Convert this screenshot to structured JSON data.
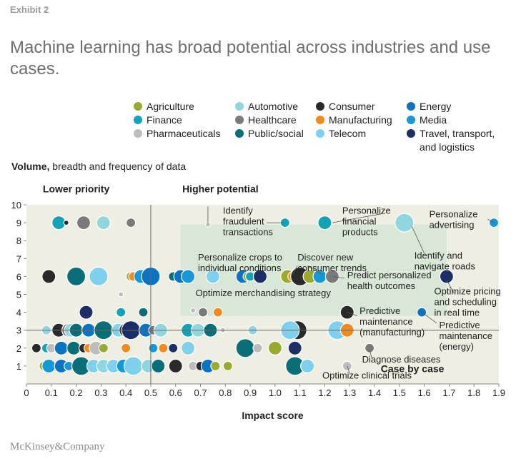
{
  "exhibit": "Exhibit 2",
  "title": "Machine learning has broad potential across industries and use cases.",
  "brand": "McKinsey&Company",
  "colors": {
    "Agriculture": "#9aaa2e",
    "Automotive": "#8fd6de",
    "Consumer": "#2a2a2a",
    "Energy": "#0a73c4",
    "Finance": "#12a3b6",
    "Healthcare": "#7a7a7a",
    "Manufacturing": "#f28a1e",
    "Media": "#1498d8",
    "Pharmaceuticals": "#bdbdbd",
    "Public/social": "#0a6e78",
    "Telecom": "#7fd0ec",
    "Travel": "#1c2e66",
    "plot_bg": "#efeee2",
    "highlight": "#d9e8d6"
  },
  "legend": [
    {
      "key": "Agriculture",
      "label": "Agriculture"
    },
    {
      "key": "Automotive",
      "label": "Automotive"
    },
    {
      "key": "Consumer",
      "label": "Consumer"
    },
    {
      "key": "Energy",
      "label": "Energy"
    },
    {
      "key": "Finance",
      "label": "Finance"
    },
    {
      "key": "Healthcare",
      "label": "Healthcare"
    },
    {
      "key": "Manufacturing",
      "label": "Manufacturing"
    },
    {
      "key": "Media",
      "label": "Media"
    },
    {
      "key": "Pharmaceuticals",
      "label": "Pharmaceuticals"
    },
    {
      "key": "Public/social",
      "label": "Public/social"
    },
    {
      "key": "Telecom",
      "label": "Telecom"
    },
    {
      "key": "Travel",
      "label": "Travel, transport,",
      "label2": "and logistics"
    }
  ],
  "y_title_bold": "Volume,",
  "y_title_rest": " breadth and frequency of data",
  "chart_data": {
    "type": "scatter",
    "title": "Machine learning has broad potential across industries and use cases.",
    "xlabel": "Impact score",
    "ylabel": "Volume, breadth and frequency of data",
    "xlim": [
      0,
      1.9
    ],
    "ylim": [
      0,
      10
    ],
    "xticks": [
      "0",
      "0.1",
      "0.2",
      "0.3",
      "0.4",
      "0.5",
      "0.6",
      "0.7",
      "0.8",
      "0.9",
      "1.0",
      "1.1",
      "1.2",
      "1.3",
      "1.4",
      "1.5",
      "1.6",
      "1.7",
      "1.8",
      "1.9"
    ],
    "yticks": [
      "1",
      "2",
      "3",
      "4",
      "5",
      "6",
      "7",
      "8",
      "9",
      "10"
    ],
    "divider_x": 0.5,
    "divider_y": 3,
    "highlight_region": {
      "x": [
        0.62,
        1.69
      ],
      "y": [
        3.8,
        8.9
      ]
    },
    "quadrant_labels": [
      {
        "text": "Lower priority",
        "x": 0.2,
        "y": 10.7
      },
      {
        "text": "Higher potential",
        "x": 0.78,
        "y": 10.7
      },
      {
        "text": "Case by case",
        "x": 1.68,
        "y": 0.65
      }
    ],
    "points": [
      {
        "x": 0.13,
        "y": 9,
        "s": 3,
        "c": "Finance"
      },
      {
        "x": 0.16,
        "y": 9,
        "s": 1,
        "c": "Consumer"
      },
      {
        "x": 0.23,
        "y": 9,
        "s": 3,
        "c": "Healthcare"
      },
      {
        "x": 0.31,
        "y": 9,
        "s": 3,
        "c": "Automotive"
      },
      {
        "x": 0.42,
        "y": 9,
        "s": 2,
        "c": "Healthcare"
      },
      {
        "x": 0.73,
        "y": 8.9,
        "s": 1,
        "c": "Pharmaceuticals"
      },
      {
        "x": 1.04,
        "y": 9,
        "s": 2,
        "c": "Finance"
      },
      {
        "x": 1.2,
        "y": 9,
        "s": 3,
        "c": "Finance"
      },
      {
        "x": 1.52,
        "y": 9,
        "s": 4,
        "c": "Automotive"
      },
      {
        "x": 1.88,
        "y": 9,
        "s": 2,
        "c": "Media"
      },
      {
        "x": 0.09,
        "y": 6,
        "s": 3,
        "c": "Consumer"
      },
      {
        "x": 0.2,
        "y": 6,
        "s": 4,
        "c": "Public/social"
      },
      {
        "x": 0.29,
        "y": 6,
        "s": 4,
        "c": "Telecom"
      },
      {
        "x": 0.42,
        "y": 6,
        "s": 2,
        "c": "Agriculture"
      },
      {
        "x": 0.43,
        "y": 6,
        "s": 2,
        "c": "Manufacturing"
      },
      {
        "x": 0.46,
        "y": 6,
        "s": 3,
        "c": "Media"
      },
      {
        "x": 0.5,
        "y": 6,
        "s": 4,
        "c": "Energy"
      },
      {
        "x": 0.59,
        "y": 6,
        "s": 2,
        "c": "Public/social"
      },
      {
        "x": 0.62,
        "y": 6,
        "s": 3,
        "c": "Energy"
      },
      {
        "x": 0.65,
        "y": 6,
        "s": 3,
        "c": "Media"
      },
      {
        "x": 0.75,
        "y": 6,
        "s": 3,
        "c": "Telecom"
      },
      {
        "x": 0.87,
        "y": 6,
        "s": 3,
        "c": "Energy"
      },
      {
        "x": 0.89,
        "y": 6,
        "s": 2,
        "c": "Agriculture"
      },
      {
        "x": 0.9,
        "y": 6,
        "s": 2,
        "c": "Finance"
      },
      {
        "x": 0.94,
        "y": 6,
        "s": 3,
        "c": "Travel"
      },
      {
        "x": 1.05,
        "y": 6,
        "s": 3,
        "c": "Agriculture"
      },
      {
        "x": 1.07,
        "y": 6,
        "s": 2,
        "c": "Manufacturing"
      },
      {
        "x": 1.1,
        "y": 6,
        "s": 4,
        "c": "Consumer"
      },
      {
        "x": 1.14,
        "y": 6,
        "s": 3,
        "c": "Agriculture"
      },
      {
        "x": 1.18,
        "y": 6,
        "s": 3,
        "c": "Media"
      },
      {
        "x": 1.23,
        "y": 6,
        "s": 3,
        "c": "Healthcare"
      },
      {
        "x": 1.36,
        "y": 6,
        "s": 1,
        "c": "Pharmaceuticals"
      },
      {
        "x": 1.69,
        "y": 6,
        "s": 3,
        "c": "Travel"
      },
      {
        "x": 0.38,
        "y": 5,
        "s": 1,
        "c": "Pharmaceuticals"
      },
      {
        "x": 0.67,
        "y": 4.1,
        "s": 1,
        "c": "Pharmaceuticals"
      },
      {
        "x": 0.71,
        "y": 4,
        "s": 2,
        "c": "Healthcare"
      },
      {
        "x": 0.77,
        "y": 4,
        "s": 2,
        "c": "Manufacturing"
      },
      {
        "x": 0.24,
        "y": 4,
        "s": 3,
        "c": "Travel"
      },
      {
        "x": 0.38,
        "y": 4,
        "s": 2,
        "c": "Finance"
      },
      {
        "x": 0.47,
        "y": 4,
        "s": 2,
        "c": "Public/social"
      },
      {
        "x": 1.29,
        "y": 4,
        "s": 3,
        "c": "Consumer"
      },
      {
        "x": 1.59,
        "y": 4,
        "s": 2,
        "c": "Energy"
      },
      {
        "x": 0.08,
        "y": 3,
        "s": 2,
        "c": "Automotive"
      },
      {
        "x": 0.13,
        "y": 3,
        "s": 3,
        "c": "Consumer"
      },
      {
        "x": 0.17,
        "y": 3,
        "s": 3,
        "c": "Healthcare"
      },
      {
        "x": 0.18,
        "y": 3,
        "s": 3,
        "c": "Automotive"
      },
      {
        "x": 0.2,
        "y": 3,
        "s": 3,
        "c": "Public/social"
      },
      {
        "x": 0.25,
        "y": 3,
        "s": 3,
        "c": "Energy"
      },
      {
        "x": 0.31,
        "y": 3,
        "s": 4,
        "c": "Public/social"
      },
      {
        "x": 0.37,
        "y": 3,
        "s": 3,
        "c": "Telecom"
      },
      {
        "x": 0.4,
        "y": 3,
        "s": 3,
        "c": "Consumer"
      },
      {
        "x": 0.42,
        "y": 3,
        "s": 4,
        "c": "Travel"
      },
      {
        "x": 0.48,
        "y": 3,
        "s": 3,
        "c": "Energy"
      },
      {
        "x": 0.51,
        "y": 3,
        "s": 2,
        "c": "Healthcare"
      },
      {
        "x": 0.54,
        "y": 3,
        "s": 3,
        "c": "Automotive"
      },
      {
        "x": 0.65,
        "y": 3,
        "s": 3,
        "c": "Finance"
      },
      {
        "x": 0.69,
        "y": 3,
        "s": 3,
        "c": "Automotive"
      },
      {
        "x": 0.74,
        "y": 3,
        "s": 3,
        "c": "Public/social"
      },
      {
        "x": 0.79,
        "y": 3,
        "s": 1,
        "c": "Pharmaceuticals"
      },
      {
        "x": 0.91,
        "y": 3,
        "s": 2,
        "c": "Automotive"
      },
      {
        "x": 1.09,
        "y": 3,
        "s": 4,
        "c": "Consumer"
      },
      {
        "x": 1.06,
        "y": 3,
        "s": 4,
        "c": "Telecom"
      },
      {
        "x": 1.25,
        "y": 3,
        "s": 4,
        "c": "Telecom"
      },
      {
        "x": 1.29,
        "y": 3,
        "s": 3,
        "c": "Manufacturing"
      },
      {
        "x": 0.04,
        "y": 2,
        "s": 2,
        "c": "Consumer"
      },
      {
        "x": 0.08,
        "y": 2,
        "s": 2,
        "c": "Finance"
      },
      {
        "x": 0.1,
        "y": 2,
        "s": 2,
        "c": "Pharmaceuticals"
      },
      {
        "x": 0.14,
        "y": 2,
        "s": 3,
        "c": "Energy"
      },
      {
        "x": 0.19,
        "y": 2,
        "s": 3,
        "c": "Public/social"
      },
      {
        "x": 0.23,
        "y": 2,
        "s": 2,
        "c": "Consumer"
      },
      {
        "x": 0.25,
        "y": 2,
        "s": 2,
        "c": "Manufacturing"
      },
      {
        "x": 0.28,
        "y": 2,
        "s": 3,
        "c": "Pharmaceuticals"
      },
      {
        "x": 0.31,
        "y": 2,
        "s": 2,
        "c": "Agriculture"
      },
      {
        "x": 0.4,
        "y": 2,
        "s": 2,
        "c": "Manufacturing"
      },
      {
        "x": 0.51,
        "y": 2,
        "s": 2,
        "c": "Media"
      },
      {
        "x": 0.55,
        "y": 2,
        "s": 2,
        "c": "Manufacturing"
      },
      {
        "x": 0.59,
        "y": 2,
        "s": 2,
        "c": "Travel"
      },
      {
        "x": 0.65,
        "y": 2,
        "s": 3,
        "c": "Telecom"
      },
      {
        "x": 0.88,
        "y": 2,
        "s": 4,
        "c": "Public/social"
      },
      {
        "x": 0.93,
        "y": 2,
        "s": 2,
        "c": "Pharmaceuticals"
      },
      {
        "x": 1.0,
        "y": 2,
        "s": 3,
        "c": "Agriculture"
      },
      {
        "x": 1.08,
        "y": 2,
        "s": 3,
        "c": "Travel"
      },
      {
        "x": 1.38,
        "y": 2,
        "s": 2,
        "c": "Healthcare"
      },
      {
        "x": 0.07,
        "y": 1,
        "s": 2,
        "c": "Agriculture"
      },
      {
        "x": 0.09,
        "y": 1,
        "s": 3,
        "c": "Media"
      },
      {
        "x": 0.14,
        "y": 1,
        "s": 3,
        "c": "Energy"
      },
      {
        "x": 0.17,
        "y": 1,
        "s": 2,
        "c": "Media"
      },
      {
        "x": 0.22,
        "y": 1,
        "s": 4,
        "c": "Public/social"
      },
      {
        "x": 0.27,
        "y": 1,
        "s": 3,
        "c": "Telecom"
      },
      {
        "x": 0.31,
        "y": 1,
        "s": 3,
        "c": "Automotive"
      },
      {
        "x": 0.35,
        "y": 1,
        "s": 3,
        "c": "Telecom"
      },
      {
        "x": 0.39,
        "y": 1,
        "s": 3,
        "c": "Media"
      },
      {
        "x": 0.43,
        "y": 1,
        "s": 4,
        "c": "Telecom"
      },
      {
        "x": 0.49,
        "y": 1,
        "s": 3,
        "c": "Automotive"
      },
      {
        "x": 0.53,
        "y": 1,
        "s": 3,
        "c": "Public/social"
      },
      {
        "x": 0.6,
        "y": 1,
        "s": 3,
        "c": "Consumer"
      },
      {
        "x": 0.67,
        "y": 1,
        "s": 2,
        "c": "Pharmaceuticals"
      },
      {
        "x": 0.7,
        "y": 1,
        "s": 2,
        "c": "Consumer"
      },
      {
        "x": 0.73,
        "y": 1,
        "s": 3,
        "c": "Energy"
      },
      {
        "x": 0.76,
        "y": 1,
        "s": 2,
        "c": "Agriculture"
      },
      {
        "x": 0.81,
        "y": 1,
        "s": 2,
        "c": "Agriculture"
      },
      {
        "x": 1.08,
        "y": 1,
        "s": 4,
        "c": "Public/social"
      },
      {
        "x": 1.13,
        "y": 1,
        "s": 3,
        "c": "Telecom"
      },
      {
        "x": 1.29,
        "y": 1,
        "s": 2,
        "c": "Pharmaceuticals"
      }
    ],
    "annotations": [
      {
        "lines": [
          "Identify",
          "fraudulent",
          "transactions"
        ],
        "x": 0.79,
        "y": 9.5,
        "anchor": "start"
      },
      {
        "lines": [
          "Personalize",
          "financial",
          "products"
        ],
        "x": 1.27,
        "y": 9.5,
        "anchor": "start"
      },
      {
        "lines": [
          "Personalize",
          "advertising"
        ],
        "x": 1.62,
        "y": 9.3,
        "anchor": "start"
      },
      {
        "lines": [
          "Identify and",
          "navigate roads"
        ],
        "x": 1.56,
        "y": 7.0,
        "anchor": "start"
      },
      {
        "lines": [
          "Personalize crops to",
          "individual conditions"
        ],
        "x": 0.69,
        "y": 6.9,
        "anchor": "start"
      },
      {
        "lines": [
          "Discover new",
          "consumer trends"
        ],
        "x": 1.09,
        "y": 6.9,
        "anchor": "start"
      },
      {
        "lines": [
          "Predict personalized",
          "health outcomes"
        ],
        "x": 1.29,
        "y": 5.9,
        "anchor": "start"
      },
      {
        "lines": [
          "Optimize merchandising strategy"
        ],
        "x": 0.68,
        "y": 4.9,
        "anchor": "start"
      },
      {
        "lines": [
          "Optimize pricing",
          "and scheduling",
          "in real time"
        ],
        "x": 1.64,
        "y": 5.0,
        "anchor": "start"
      },
      {
        "lines": [
          "Predictive",
          "maintenance",
          "(manufacturing)"
        ],
        "x": 1.34,
        "y": 3.9,
        "anchor": "start"
      },
      {
        "lines": [
          "Predictive",
          "maintenance",
          "(energy)"
        ],
        "x": 1.66,
        "y": 3.1,
        "anchor": "start"
      },
      {
        "lines": [
          "Diagnose diseases"
        ],
        "x": 1.35,
        "y": 1.2,
        "anchor": "start"
      },
      {
        "lines": [
          "Optimize clinical trials"
        ],
        "x": 1.19,
        "y": 0.3,
        "anchor": "start"
      }
    ],
    "leaders": [
      {
        "x1": 0.73,
        "y1": 9.9,
        "x2": 0.73,
        "y2": 9.0
      },
      {
        "x1": 0.965,
        "y1": 9.0,
        "x2": 1.03,
        "y2": 9.0
      },
      {
        "x1": 1.43,
        "y1": 9.5,
        "x2": 1.23,
        "y2": 9.0
      },
      {
        "x1": 1.855,
        "y1": 9.2,
        "x2": 1.88,
        "y2": 9.0
      },
      {
        "x1": 1.6,
        "y1": 7.3,
        "x2": 1.55,
        "y2": 8.8
      },
      {
        "x1": 1.09,
        "y1": 6.6,
        "x2": 1.07,
        "y2": 6.1
      },
      {
        "x1": 1.13,
        "y1": 6.6,
        "x2": 1.19,
        "y2": 6.1
      },
      {
        "x1": 1.28,
        "y1": 5.9,
        "x2": 1.23,
        "y2": 6.0
      },
      {
        "x1": 1.72,
        "y1": 5.05,
        "x2": 1.69,
        "y2": 5.8
      },
      {
        "x1": 1.33,
        "y1": 3.8,
        "x2": 1.29,
        "y2": 4.0
      },
      {
        "x1": 1.65,
        "y1": 3.4,
        "x2": 1.59,
        "y2": 4.0
      },
      {
        "x1": 1.39,
        "y1": 1.4,
        "x2": 1.38,
        "y2": 1.9
      },
      {
        "x1": 1.3,
        "y1": 0.6,
        "x2": 1.29,
        "y2": 1.0
      }
    ]
  }
}
